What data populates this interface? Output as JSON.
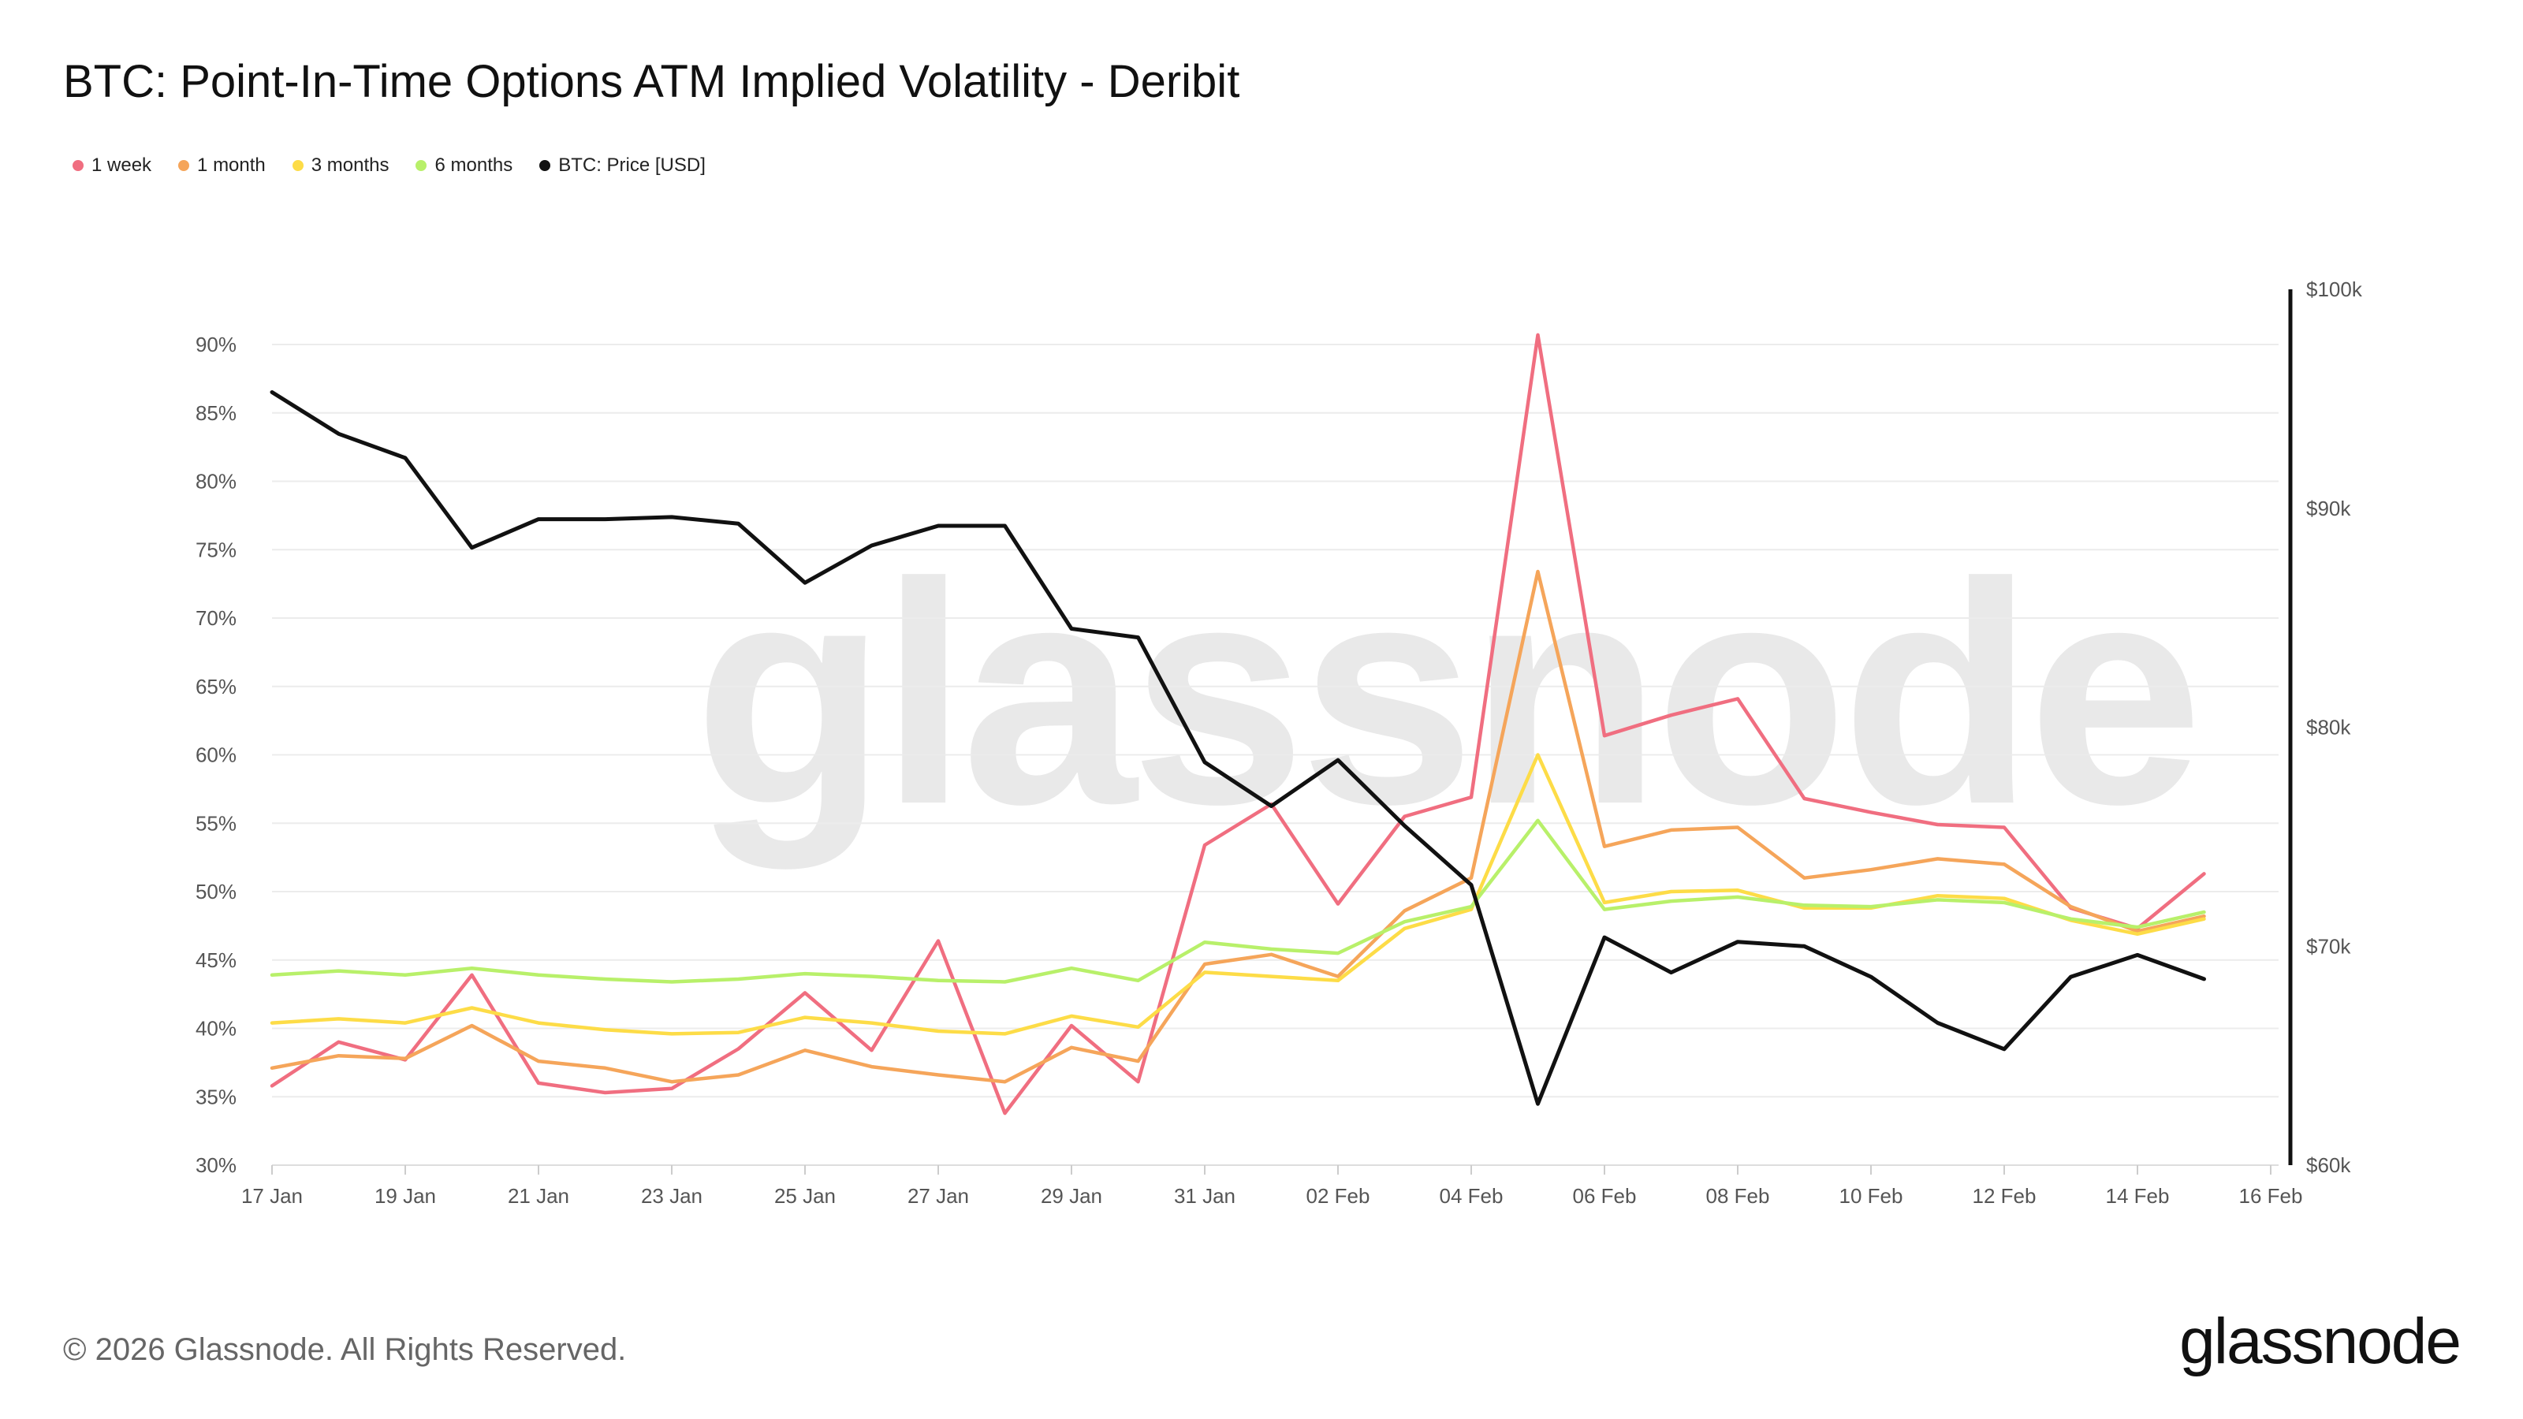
{
  "title": "BTC: Point-In-Time Options ATM Implied Volatility - Deribit",
  "watermark": "glassnode",
  "footer": {
    "copyright": "© 2026 Glassnode. All Rights Reserved.",
    "logo": "glassnode"
  },
  "chart_data": {
    "type": "line",
    "title": "BTC: Point-In-Time Options ATM Implied Volatility - Deribit",
    "x": [
      "17 Jan",
      "18 Jan",
      "19 Jan",
      "20 Jan",
      "21 Jan",
      "22 Jan",
      "23 Jan",
      "24 Jan",
      "25 Jan",
      "26 Jan",
      "27 Jan",
      "28 Jan",
      "29 Jan",
      "30 Jan",
      "31 Jan",
      "01 Feb",
      "02 Feb",
      "03 Feb",
      "04 Feb",
      "05 Feb",
      "06 Feb",
      "07 Feb",
      "08 Feb",
      "09 Feb",
      "10 Feb",
      "11 Feb",
      "12 Feb",
      "13 Feb",
      "14 Feb",
      "15 Feb"
    ],
    "x_ticks": [
      "17 Jan",
      "19 Jan",
      "21 Jan",
      "23 Jan",
      "25 Jan",
      "27 Jan",
      "29 Jan",
      "31 Jan",
      "02 Feb",
      "04 Feb",
      "06 Feb",
      "08 Feb",
      "10 Feb",
      "12 Feb",
      "14 Feb",
      "16 Feb"
    ],
    "y_left": {
      "min": 30,
      "max": 90,
      "ticks": [
        "30%",
        "35%",
        "40%",
        "45%",
        "50%",
        "55%",
        "60%",
        "65%",
        "70%",
        "75%",
        "80%",
        "85%",
        "90%"
      ]
    },
    "y_right": {
      "min": 60000,
      "max": 100000,
      "ticks": [
        "$60k",
        "$70k",
        "$80k",
        "$90k",
        "$100k"
      ]
    },
    "series": [
      {
        "name": "1 week",
        "axis": "left",
        "color": "#f06e80",
        "values": [
          35.8,
          39.0,
          37.7,
          43.9,
          36.0,
          35.3,
          35.6,
          38.5,
          42.6,
          38.4,
          46.4,
          33.8,
          40.2,
          36.1,
          53.4,
          56.4,
          49.1,
          55.5,
          56.9,
          90.7,
          61.4,
          62.9,
          64.1,
          56.8,
          55.8,
          54.9,
          54.7,
          48.8,
          47.3,
          51.3
        ]
      },
      {
        "name": "1 month",
        "axis": "left",
        "color": "#f5a55a",
        "values": [
          37.1,
          38.0,
          37.8,
          40.2,
          37.6,
          37.1,
          36.1,
          36.6,
          38.4,
          37.2,
          36.6,
          36.1,
          38.6,
          37.6,
          44.7,
          45.4,
          43.8,
          48.6,
          51.0,
          73.4,
          53.3,
          54.5,
          54.7,
          51.0,
          51.6,
          52.4,
          52.0,
          48.9,
          47.1,
          48.2
        ]
      },
      {
        "name": "3 months",
        "axis": "left",
        "color": "#fddc47",
        "values": [
          40.4,
          40.7,
          40.4,
          41.5,
          40.4,
          39.9,
          39.6,
          39.7,
          40.8,
          40.4,
          39.8,
          39.6,
          40.9,
          40.1,
          44.1,
          43.8,
          43.5,
          47.3,
          48.7,
          60.0,
          49.2,
          50.0,
          50.1,
          48.8,
          48.8,
          49.7,
          49.5,
          47.9,
          46.9,
          48.0
        ]
      },
      {
        "name": "6 months",
        "axis": "left",
        "color": "#b8f06a",
        "values": [
          43.9,
          44.2,
          43.9,
          44.4,
          43.9,
          43.6,
          43.4,
          43.6,
          44.0,
          43.8,
          43.5,
          43.4,
          44.4,
          43.5,
          46.3,
          45.8,
          45.5,
          47.8,
          48.9,
          55.2,
          48.7,
          49.3,
          49.6,
          49.0,
          48.9,
          49.4,
          49.2,
          48.0,
          47.4,
          48.5
        ]
      },
      {
        "name": "BTC: Price [USD]",
        "axis": "right",
        "color": "#111111",
        "values": [
          95300,
          93400,
          92300,
          88200,
          89500,
          89500,
          89600,
          89300,
          86600,
          88300,
          89200,
          89200,
          84500,
          84100,
          78400,
          76400,
          78500,
          75500,
          72800,
          62800,
          70400,
          68800,
          70200,
          70000,
          68600,
          66500,
          65300,
          68600,
          69600,
          68500
        ]
      }
    ]
  }
}
